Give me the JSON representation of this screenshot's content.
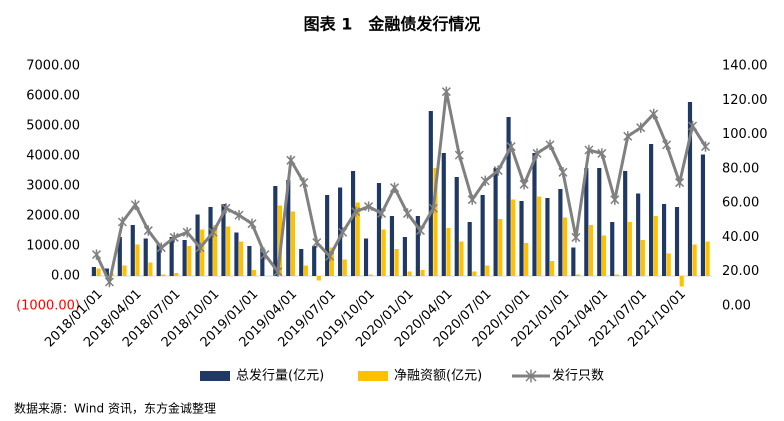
{
  "chart_data": {
    "type": "bar_line",
    "title": "图表 1　金融债发行情况",
    "source": "数据来源：Wind 资讯，东方金诚整理",
    "categories": [
      "2018/01/01",
      null,
      null,
      "2018/04/01",
      null,
      null,
      "2018/07/01",
      null,
      null,
      "2018/10/01",
      null,
      null,
      "2019/01/01",
      null,
      null,
      "2019/04/01",
      null,
      null,
      "2019/07/01",
      null,
      null,
      "2019/10/01",
      null,
      null,
      "2020/01/01",
      null,
      null,
      "2020/04/01",
      null,
      null,
      "2020/07/01",
      null,
      null,
      "2020/10/01",
      null,
      null,
      "2021/01/01",
      null,
      null,
      "2021/04/01",
      null,
      null,
      "2021/07/01",
      null,
      null,
      "2021/10/01",
      null,
      null
    ],
    "series": [
      {
        "name": "总发行量(亿元)",
        "color": "#203864",
        "kind": "bar",
        "values": [
          300,
          250,
          1300,
          1700,
          1250,
          1050,
          1300,
          1200,
          2050,
          2300,
          2400,
          1450,
          1000,
          950,
          3000,
          3200,
          900,
          1000,
          2700,
          2950,
          3500,
          1250,
          3100,
          2000,
          1300,
          2000,
          5500,
          4100,
          3300,
          1800,
          2700,
          3600,
          5300,
          2500,
          4100,
          2600,
          2900,
          950,
          3600,
          3600,
          1800,
          3500,
          2750,
          4400,
          2400,
          2300,
          5800,
          4050
        ]
      },
      {
        "name": "净融资额(亿元)",
        "color": "#ffc000",
        "kind": "bar",
        "values": [
          250,
          100,
          350,
          1050,
          450,
          50,
          100,
          1000,
          1550,
          1700,
          1650,
          1150,
          200,
          0,
          2350,
          2150,
          350,
          -150,
          950,
          550,
          2450,
          50,
          1550,
          900,
          150,
          200,
          3600,
          1600,
          1150,
          150,
          350,
          1900,
          2550,
          1100,
          2650,
          500,
          1950,
          50,
          1700,
          1350,
          50,
          1800,
          1200,
          2000,
          750,
          -350,
          1050,
          1150
        ]
      },
      {
        "name": "发行只数",
        "color": "#808080",
        "kind": "line",
        "axis": "y2",
        "values": [
          30,
          14,
          49,
          59,
          44,
          34,
          40,
          43,
          34,
          43,
          57,
          53,
          48,
          30,
          20,
          85,
          72,
          37,
          29,
          43,
          55,
          58,
          54,
          69,
          54,
          44,
          57,
          125,
          88,
          62,
          73,
          79,
          93,
          71,
          89,
          94,
          78,
          40,
          91,
          89,
          62,
          99,
          104,
          112,
          94,
          72,
          105,
          93
        ]
      }
    ],
    "ylim": [
      -1000,
      7000
    ],
    "yticks": [
      {
        "value": -1000,
        "label": "(1000.00)"
      },
      {
        "value": 0,
        "label": "0.00"
      },
      {
        "value": 1000,
        "label": "1000.00"
      },
      {
        "value": 2000,
        "label": "2000.00"
      },
      {
        "value": 3000,
        "label": "3000.00"
      },
      {
        "value": 4000,
        "label": "4000.00"
      },
      {
        "value": 5000,
        "label": "5000.00"
      },
      {
        "value": 6000,
        "label": "6000.00"
      },
      {
        "value": 7000,
        "label": "7000.00"
      }
    ],
    "negative_label_color": "#ff0000",
    "y2lim": [
      0,
      140
    ],
    "y2ticks": [
      {
        "value": 0,
        "label": "0.00"
      },
      {
        "value": 20,
        "label": "20.00"
      },
      {
        "value": 40,
        "label": "40.00"
      },
      {
        "value": 60,
        "label": "60.00"
      },
      {
        "value": 80,
        "label": "80.00"
      },
      {
        "value": 100,
        "label": "100.00"
      },
      {
        "value": 120,
        "label": "120.00"
      },
      {
        "value": 140,
        "label": "140.00"
      }
    ],
    "grid": false,
    "legend": "bottom"
  }
}
